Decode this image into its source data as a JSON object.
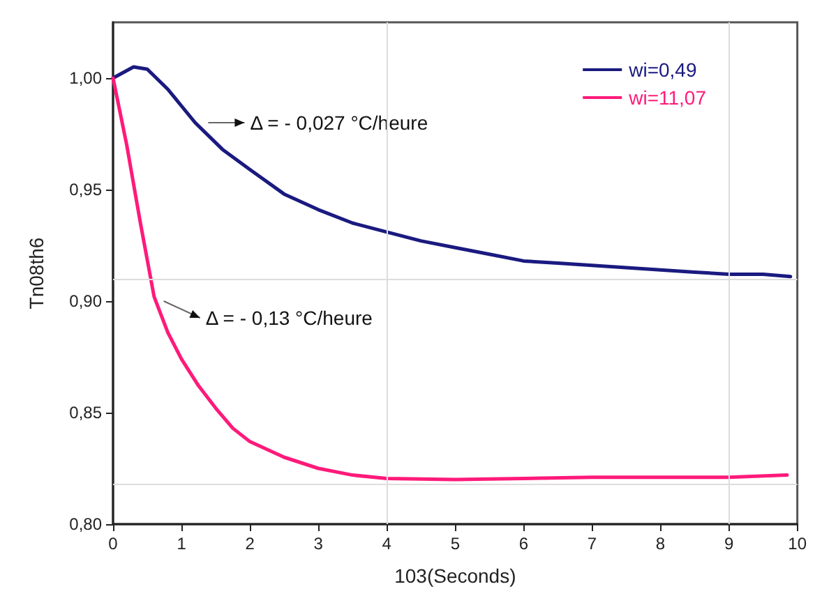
{
  "chart_data": {
    "type": "line",
    "xlabel": "103(Seconds)",
    "ylabel": "Tn08th6",
    "x": [
      0,
      0.3,
      0.5,
      0.8,
      1.2,
      1.6,
      2,
      2.5,
      3,
      3.5,
      4,
      4.5,
      5,
      5.5,
      6,
      6.5,
      7,
      7.5,
      8,
      8.5,
      9,
      9.5,
      9.9
    ],
    "series": [
      {
        "name": "wi=0,49",
        "color": "#1a1a80",
        "values": [
          1.0,
          1.005,
          1.004,
          0.995,
          0.98,
          0.968,
          0.959,
          0.948,
          0.941,
          0.935,
          0.931,
          0.927,
          0.924,
          0.921,
          0.918,
          0.917,
          0.916,
          0.915,
          0.914,
          0.913,
          0.912,
          0.912,
          0.911
        ]
      },
      {
        "name": "wi=11,07",
        "color": "#ff1a7a",
        "x": [
          0,
          0.2,
          0.4,
          0.6,
          0.8,
          1,
          1.25,
          1.5,
          1.75,
          2,
          2.5,
          3,
          3.5,
          4,
          5,
          6,
          7,
          8,
          9,
          9.85
        ],
        "values": [
          1.0,
          0.97,
          0.935,
          0.902,
          0.886,
          0.874,
          0.862,
          0.852,
          0.843,
          0.837,
          0.83,
          0.825,
          0.822,
          0.8205,
          0.82,
          0.8205,
          0.821,
          0.821,
          0.821,
          0.822
        ]
      }
    ],
    "xlim": [
      0,
      10
    ],
    "xticks": [
      0,
      1,
      2,
      3,
      4,
      5,
      6,
      7,
      8,
      9,
      10
    ],
    "ylim": [
      0.8,
      1.025
    ],
    "yticks": [
      {
        "value": 0.8,
        "label": "0,80"
      },
      {
        "value": 0.85,
        "label": "0,85"
      },
      {
        "value": 0.9,
        "label": "0,90"
      },
      {
        "value": 0.95,
        "label": "0,95"
      },
      {
        "value": 1.0,
        "label": "1,00"
      }
    ],
    "ref_lines": [
      {
        "axis": "y",
        "value": 0.91,
        "color": "#dddddd"
      },
      {
        "axis": "y",
        "value": 0.818,
        "color": "#dddddd"
      },
      {
        "axis": "x",
        "value": 4,
        "color": "#dddddd"
      },
      {
        "axis": "x",
        "value": 9,
        "color": "#dddddd"
      }
    ],
    "annotations": [
      {
        "text": "Δ = - 0,027 °C/heure",
        "x": 1.35,
        "y": 0.98
      },
      {
        "text": "Δ = - 0,13 °C/heure",
        "x": 0.7,
        "y": 0.9
      }
    ],
    "legend": "top right",
    "marker": "none",
    "line_style": "solid",
    "grid": false
  }
}
